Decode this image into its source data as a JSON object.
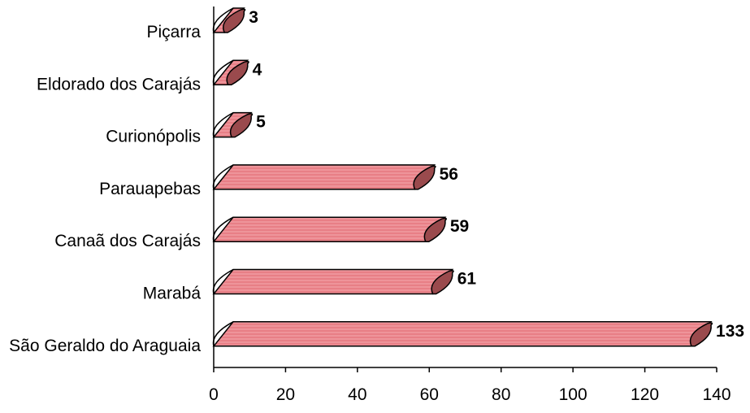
{
  "chart_data": {
    "type": "bar",
    "orientation": "horizontal",
    "style": "3d-cylinder",
    "categories": [
      "Piçarra",
      "Eldorado dos Carajás",
      "Curionópolis",
      "Parauapebas",
      "Canaã dos Carajás",
      "Marabá",
      "São Geraldo do Araguaia"
    ],
    "values": [
      3,
      4,
      5,
      56,
      59,
      61,
      133
    ],
    "xlim": [
      0,
      140
    ],
    "xticks": [
      "0",
      "20",
      "40",
      "60",
      "80",
      "100",
      "120",
      "140"
    ],
    "title": "",
    "xlabel": "",
    "ylabel": "",
    "grid": false,
    "legend": "none",
    "colors": {
      "bar_fill": "#e87f86",
      "bar_highlight": "#f6b7bb",
      "bar_cap": "#9a4a4d",
      "bar_outline": "#000000",
      "axis": "#000000"
    }
  }
}
